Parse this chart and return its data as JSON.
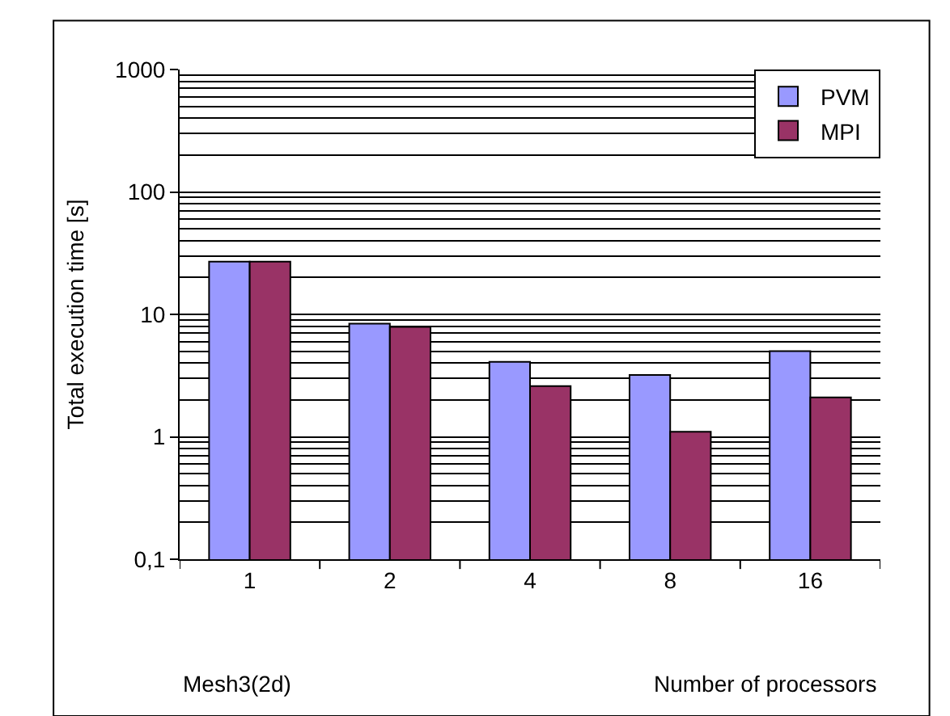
{
  "chart_data": {
    "type": "bar",
    "ylabel": "Total execution time [s]",
    "xlabel": "Number of processors",
    "annotations": [
      "Mesh3(2d)"
    ],
    "categories": [
      "1",
      "2",
      "4",
      "8",
      "16"
    ],
    "series": [
      {
        "name": "PVM",
        "color": "#9999ff",
        "values": [
          27,
          8.4,
          4.1,
          3.2,
          5.0
        ]
      },
      {
        "name": "MPI",
        "color": "#993366",
        "values": [
          27,
          7.9,
          2.6,
          1.1,
          2.1
        ]
      }
    ],
    "log": true,
    "ylim": [
      0.1,
      1000
    ],
    "yticks": [
      {
        "value": 0.1,
        "label": "0,1"
      },
      1,
      10,
      100,
      1000
    ],
    "grid": "y",
    "legend": "top right"
  }
}
